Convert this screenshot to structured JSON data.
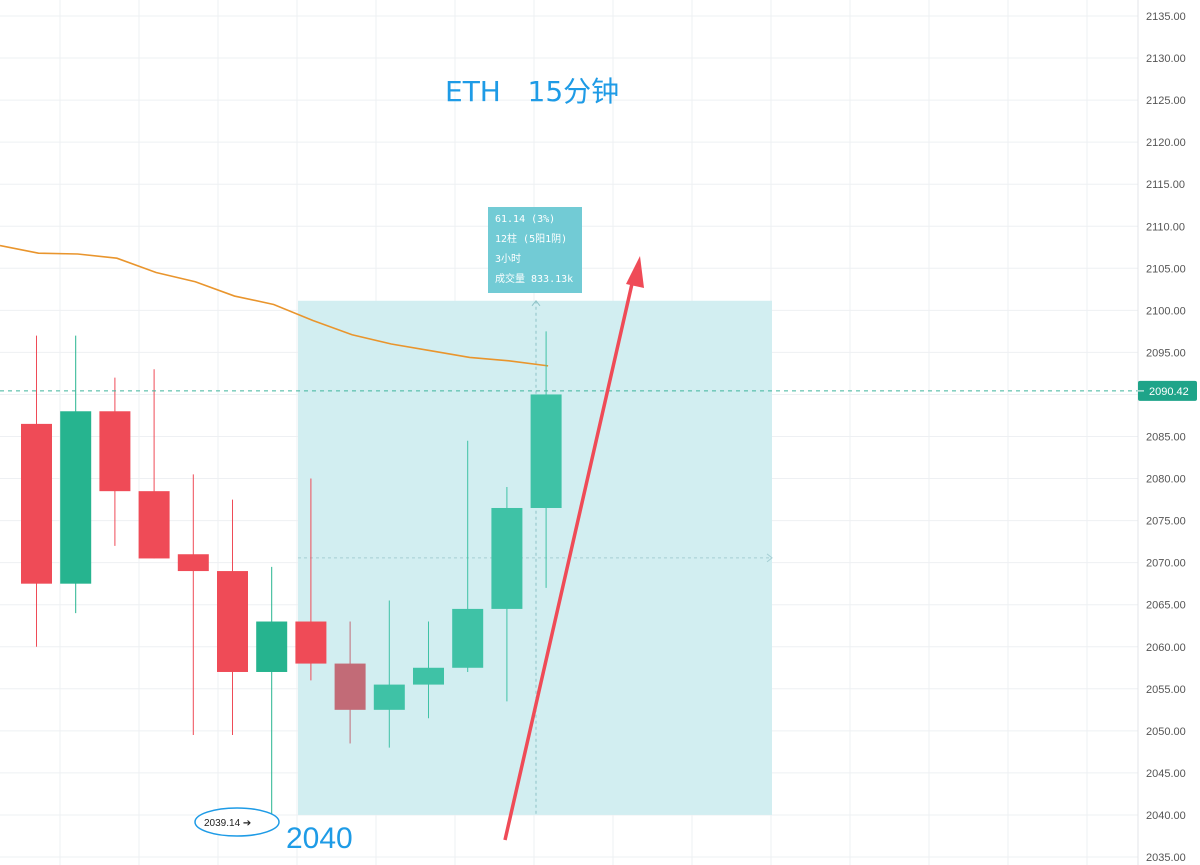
{
  "chart_data": {
    "type": "candlestick",
    "title": "ETH   15分钟",
    "ylim": [
      2035,
      2135
    ],
    "y_ticks": [
      "2135.00",
      "2130.00",
      "2125.00",
      "2120.00",
      "2115.00",
      "2110.00",
      "2105.00",
      "2100.00",
      "2095.00",
      "2090.00",
      "2085.00",
      "2080.00",
      "2075.00",
      "2070.00",
      "2065.00",
      "2060.00",
      "2055.00",
      "2050.00",
      "2045.00",
      "2040.00",
      "2035.00"
    ],
    "grid": true,
    "candles": [
      {
        "open": 2086.5,
        "high": 2097.0,
        "low": 2060.0,
        "close": 2067.5
      },
      {
        "open": 2067.5,
        "high": 2097.0,
        "low": 2064.0,
        "close": 2088.0
      },
      {
        "open": 2088.0,
        "high": 2092.0,
        "low": 2072.0,
        "close": 2078.5
      },
      {
        "open": 2078.5,
        "high": 2093.0,
        "low": 2070.5,
        "close": 2070.5
      },
      {
        "open": 2071.0,
        "high": 2080.5,
        "low": 2049.5,
        "close": 2069.0
      },
      {
        "open": 2069.0,
        "high": 2077.5,
        "low": 2049.5,
        "close": 2057.0
      },
      {
        "open": 2057.0,
        "high": 2069.5,
        "low": 2039.14,
        "close": 2063.0
      },
      {
        "open": 2063.0,
        "high": 2080.0,
        "low": 2056.0,
        "close": 2058.0
      },
      {
        "open": 2058.0,
        "high": 2063.0,
        "low": 2048.5,
        "close": 2052.5
      },
      {
        "open": 2052.5,
        "high": 2065.5,
        "low": 2048.0,
        "close": 2055.5
      },
      {
        "open": 2055.5,
        "high": 2063.0,
        "low": 2051.5,
        "close": 2057.5
      },
      {
        "open": 2057.5,
        "high": 2084.5,
        "low": 2057.0,
        "close": 2064.5
      },
      {
        "open": 2064.5,
        "high": 2079.0,
        "low": 2053.5,
        "close": 2076.5
      },
      {
        "open": 2076.5,
        "high": 2097.5,
        "low": 2067.0,
        "close": 2090.0
      }
    ],
    "moving_average": [
      2107.7,
      2106.8,
      2106.7,
      2106.2,
      2104.5,
      2103.4,
      2101.7,
      2100.7,
      2098.8,
      2097.1,
      2096.0,
      2095.2,
      2094.4,
      2094.0,
      2093.4
    ],
    "current_price": "2090.42",
    "measure": {
      "from_price": 2040.0,
      "to_price": 2101.14,
      "label_lines": [
        "61.14 (3%)",
        "12柱 (5阳1阴)",
        "3小时",
        "成交量 833.13k"
      ]
    },
    "low_label": "2039.14 ➔",
    "annotation": "2040",
    "colors": {
      "up": "#26b48f",
      "down": "#ef4b57",
      "down_dim": "#c26b77",
      "ma": "#e9952d",
      "measure_fill": "#d2eef1",
      "measure_box": "#72cbd5",
      "arrow": "#ef4b57",
      "price_tag": "#1fa489",
      "title": "#1e9be6"
    }
  }
}
